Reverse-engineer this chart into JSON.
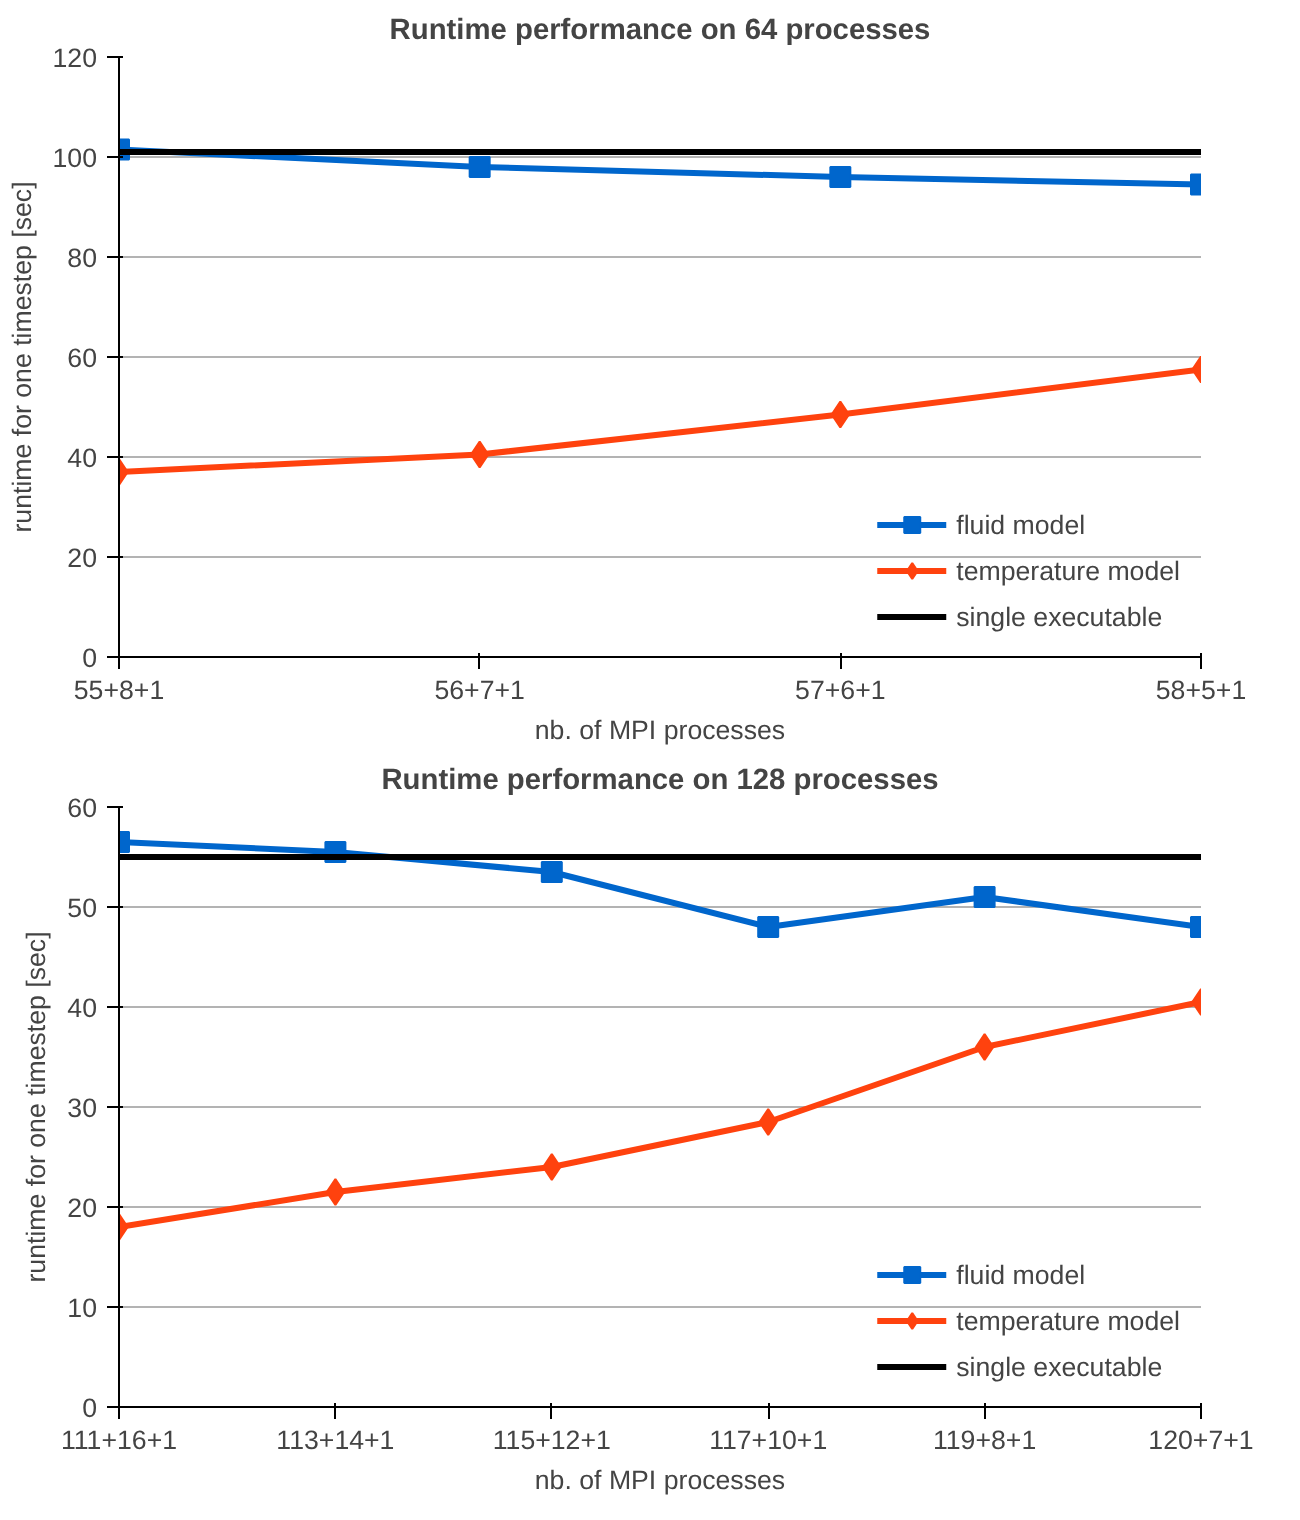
{
  "chart_data": [
    {
      "type": "line",
      "title": "Runtime performance on 64 processes",
      "xlabel": "nb. of MPI processes",
      "ylabel": "runtime for one timestep [sec]",
      "categories": [
        "55+8+1",
        "56+7+1",
        "57+6+1",
        "58+5+1"
      ],
      "series": [
        {
          "name": "fluid model",
          "color": "#0066cc",
          "marker": "square",
          "values": [
            101.5,
            98,
            96,
            94.5
          ]
        },
        {
          "name": "temperature model",
          "color": "#ff420e",
          "marker": "diamond",
          "values": [
            37,
            40.5,
            48.5,
            57.5
          ]
        },
        {
          "name": "single executable",
          "color": "#000000",
          "marker": "none",
          "values": [
            101,
            101,
            101,
            101
          ]
        }
      ],
      "ylim": [
        0,
        120
      ],
      "yticks": [
        0,
        20,
        40,
        60,
        80,
        100,
        120
      ],
      "grid": "y",
      "legend": "bottom right"
    },
    {
      "type": "line",
      "title": "Runtime performance on 128 processes",
      "xlabel": "nb. of MPI processes",
      "ylabel": "runtime for one timestep [sec]",
      "categories": [
        "111+16+1",
        "113+14+1",
        "115+12+1",
        "117+10+1",
        "119+8+1",
        "120+7+1"
      ],
      "series": [
        {
          "name": "fluid model",
          "color": "#0066cc",
          "marker": "square",
          "values": [
            56.5,
            55.5,
            53.5,
            48,
            51,
            48
          ]
        },
        {
          "name": "temperature model",
          "color": "#ff420e",
          "marker": "diamond",
          "values": [
            18,
            21.5,
            24,
            28.5,
            36,
            40.5
          ]
        },
        {
          "name": "single executable",
          "color": "#000000",
          "marker": "none",
          "values": [
            55,
            55,
            55,
            55,
            55,
            55
          ]
        }
      ],
      "ylim": [
        0,
        60
      ],
      "yticks": [
        0,
        10,
        20,
        30,
        40,
        50,
        60
      ],
      "grid": "y",
      "legend": "bottom right"
    }
  ]
}
